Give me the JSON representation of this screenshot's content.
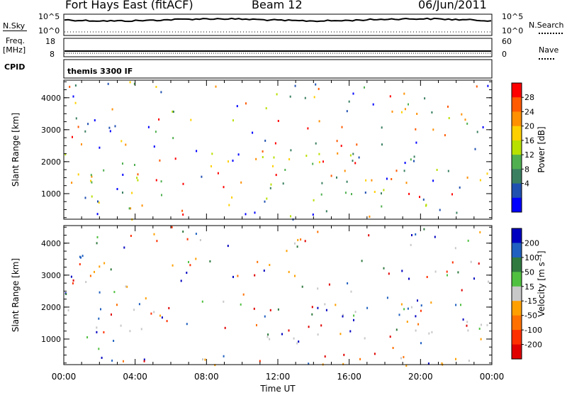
{
  "header": {
    "station": "Fort Hays East (fitACF)",
    "beam": "Beam 12",
    "date": "06/Jun/2011"
  },
  "top_panels": {
    "nsky_label": "N.Sky",
    "nsky_ticks": [
      "10^5",
      "10^0"
    ],
    "nsearch_label": "N.Search",
    "nsearch_ticks": [
      "10^5",
      "10^0"
    ],
    "freq_label": "Freq.",
    "freq_unit": "[MHz]",
    "freq_ticks": [
      "18",
      "8"
    ],
    "nave_label": "Nave",
    "nave_ticks": [
      "60",
      "0"
    ],
    "cpid_label": "CPID",
    "cpid_value": "themis 3300 IF"
  },
  "chart_data": [
    {
      "type": "heatmap",
      "name": "power",
      "ylabel": "Slant Range [km]",
      "yticks": [
        "4000",
        "3000",
        "2000",
        "1000"
      ],
      "ytick_values": [
        4000,
        3000,
        2000,
        1000
      ],
      "ylim": [
        200,
        4550
      ],
      "xlim": [
        0,
        24
      ],
      "colorbar_label": "Power [dB]",
      "colorbar_ticks": [
        "28",
        "24",
        "20",
        "16",
        "12",
        "8",
        "4"
      ],
      "colorbar_colors": [
        "#ff0000",
        "#ff5a00",
        "#ff9000",
        "#ffd000",
        "#b8e000",
        "#50b050",
        "#3a8060",
        "#2050b0",
        "#0000ff"
      ],
      "blobs": [
        {
          "t": [
            0.0,
            6.0
          ],
          "r": [
            1300,
            1800
          ],
          "level": "high"
        },
        {
          "t": [
            0.0,
            6.0
          ],
          "r": [
            1150,
            2000
          ],
          "level": "mid"
        },
        {
          "t": [
            0.3,
            3.0
          ],
          "r": [
            2500,
            3500
          ],
          "level": "low"
        },
        {
          "t": [
            1.5,
            6.0
          ],
          "r": [
            700,
            1100
          ],
          "level": "mid"
        },
        {
          "t": [
            5.0,
            6.0
          ],
          "r": [
            2200,
            3200
          ],
          "level": "mid"
        },
        {
          "t": [
            5.8,
            7.0
          ],
          "r": [
            200,
            700
          ],
          "level": "high"
        },
        {
          "t": [
            10.5,
            17.0
          ],
          "r": [
            1200,
            2300
          ],
          "level": "mid"
        },
        {
          "t": [
            11.0,
            22.0
          ],
          "r": [
            800,
            1400
          ],
          "level": "mid"
        },
        {
          "t": [
            12.5,
            18.0
          ],
          "r": [
            200,
            500
          ],
          "level": "mid"
        },
        {
          "t": [
            17.5,
            24.0
          ],
          "r": [
            1300,
            1800
          ],
          "level": "high"
        },
        {
          "t": [
            16.0,
            22.0
          ],
          "r": [
            1800,
            2200
          ],
          "level": "low"
        },
        {
          "t": [
            21.0,
            24.0
          ],
          "r": [
            2600,
            3300
          ],
          "level": "low"
        }
      ]
    },
    {
      "type": "heatmap",
      "name": "velocity",
      "ylabel": "Slant Range [km]",
      "yticks": [
        "4000",
        "3000",
        "2000",
        "1000"
      ],
      "ytick_values": [
        4000,
        3000,
        2000,
        1000
      ],
      "ylim": [
        200,
        4550
      ],
      "xlim": [
        0,
        24
      ],
      "xticks": [
        "00:00",
        "04:00",
        "08:00",
        "12:00",
        "16:00",
        "20:00",
        "00:00"
      ],
      "xtick_values": [
        0,
        4,
        8,
        12,
        16,
        20,
        24
      ],
      "xlabel": "Time UT",
      "colorbar_label": "Velocity [m s⁻¹]",
      "colorbar_ticks": [
        "200",
        "100",
        "50",
        "15",
        "-15",
        "-50",
        "-100",
        "-200"
      ],
      "colorbar_colors": [
        "#0000c0",
        "#2060c0",
        "#307a40",
        "#50c040",
        "#c8c8c8",
        "#ffa000",
        "#ff7000",
        "#ff3000",
        "#e00000"
      ],
      "blobs": [
        {
          "t": [
            0.0,
            6.5
          ],
          "r": [
            1200,
            2000
          ],
          "level": "gray"
        },
        {
          "t": [
            5.0,
            6.5
          ],
          "r": [
            1300,
            1900
          ],
          "level": "pos"
        },
        {
          "t": [
            0.5,
            3.0
          ],
          "r": [
            2600,
            3500
          ],
          "level": "neg"
        },
        {
          "t": [
            6.0,
            24.0
          ],
          "r": [
            200,
            600
          ],
          "level": "neg"
        },
        {
          "t": [
            10.5,
            24.0
          ],
          "r": [
            1000,
            2200
          ],
          "level": "gray"
        },
        {
          "t": [
            21.0,
            24.0
          ],
          "r": [
            2600,
            3300
          ],
          "level": "gray"
        }
      ]
    }
  ]
}
